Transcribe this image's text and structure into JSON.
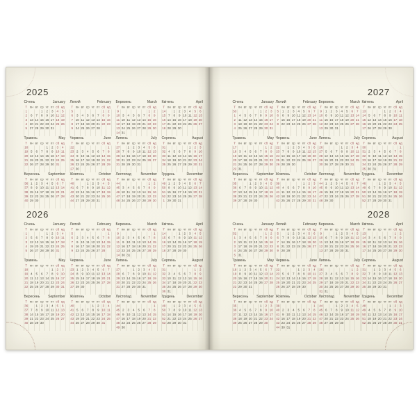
{
  "calendar": {
    "week_column_header": "Т",
    "weekday_labels": [
      "пн",
      "вт",
      "ср",
      "чт",
      "пт",
      "сб",
      "нд"
    ],
    "month_names_uk": [
      "Січень",
      "Лютий",
      "Березень",
      "Квітень",
      "Травень",
      "Червень",
      "Липень",
      "Серпень",
      "Вересень",
      "Жовтень",
      "Листопад",
      "Грудень"
    ],
    "month_names_en": [
      "January",
      "February",
      "March",
      "April",
      "May",
      "June",
      "July",
      "August",
      "September",
      "October",
      "November",
      "December"
    ],
    "colors": {
      "paper": "#f5f3e7",
      "ink": "#514e44",
      "weekend_red": "#9d5058"
    },
    "years": [
      {
        "year": "2025",
        "page": "left",
        "slot": "top",
        "months": [
          {
            "fd": 2,
            "days": 31,
            "weeks": [
              1,
              2,
              3,
              4,
              5
            ]
          },
          {
            "fd": 5,
            "days": 28,
            "weeks": [
              5,
              6,
              7,
              8,
              9
            ]
          },
          {
            "fd": 5,
            "days": 31,
            "weeks": [
              9,
              10,
              11,
              12,
              13,
              14
            ]
          },
          {
            "fd": 1,
            "days": 30,
            "weeks": [
              14,
              15,
              16,
              17,
              18
            ]
          },
          {
            "fd": 3,
            "days": 31,
            "weeks": [
              18,
              19,
              20,
              21,
              22
            ]
          },
          {
            "fd": 6,
            "days": 30,
            "weeks": [
              22,
              23,
              24,
              25,
              26,
              27
            ]
          },
          {
            "fd": 1,
            "days": 31,
            "weeks": [
              27,
              28,
              29,
              30,
              31
            ]
          },
          {
            "fd": 4,
            "days": 31,
            "weeks": [
              31,
              32,
              33,
              34,
              35
            ]
          },
          {
            "fd": 0,
            "days": 30,
            "weeks": [
              36,
              37,
              38,
              39,
              40
            ]
          },
          {
            "fd": 2,
            "days": 31,
            "weeks": [
              40,
              41,
              42,
              43,
              44
            ]
          },
          {
            "fd": 5,
            "days": 30,
            "weeks": [
              44,
              45,
              46,
              47,
              48
            ]
          },
          {
            "fd": 0,
            "days": 31,
            "weeks": [
              49,
              50,
              51,
              52,
              1
            ]
          }
        ]
      },
      {
        "year": "2026",
        "page": "left",
        "slot": "bottom",
        "months": [
          {
            "fd": 3,
            "days": 31,
            "weeks": [
              1,
              2,
              3,
              4,
              5
            ]
          },
          {
            "fd": 6,
            "days": 28,
            "weeks": [
              5,
              6,
              7,
              8,
              9
            ]
          },
          {
            "fd": 6,
            "days": 31,
            "weeks": [
              9,
              10,
              11,
              12,
              13,
              14
            ]
          },
          {
            "fd": 2,
            "days": 30,
            "weeks": [
              14,
              15,
              16,
              17,
              18
            ]
          },
          {
            "fd": 4,
            "days": 31,
            "weeks": [
              18,
              19,
              20,
              21,
              22
            ]
          },
          {
            "fd": 0,
            "days": 30,
            "weeks": [
              23,
              24,
              25,
              26,
              27
            ]
          },
          {
            "fd": 2,
            "days": 31,
            "weeks": [
              27,
              28,
              29,
              30,
              31
            ]
          },
          {
            "fd": 5,
            "days": 31,
            "weeks": [
              31,
              32,
              33,
              34,
              35,
              36
            ]
          },
          {
            "fd": 1,
            "days": 30,
            "weeks": [
              36,
              37,
              38,
              39,
              40
            ]
          },
          {
            "fd": 3,
            "days": 31,
            "weeks": [
              40,
              41,
              42,
              43,
              44
            ]
          },
          {
            "fd": 6,
            "days": 30,
            "weeks": [
              44,
              45,
              46,
              47,
              48,
              49
            ]
          },
          {
            "fd": 1,
            "days": 31,
            "weeks": [
              49,
              50,
              51,
              52,
              53
            ]
          }
        ]
      },
      {
        "year": "2027",
        "page": "right",
        "slot": "top",
        "months": [
          {
            "fd": 4,
            "days": 31,
            "weeks": [
              53,
              1,
              2,
              3,
              4
            ]
          },
          {
            "fd": 0,
            "days": 28,
            "weeks": [
              5,
              6,
              7,
              8
            ]
          },
          {
            "fd": 0,
            "days": 31,
            "weeks": [
              9,
              10,
              11,
              12,
              13
            ]
          },
          {
            "fd": 3,
            "days": 30,
            "weeks": [
              13,
              14,
              15,
              16,
              17
            ]
          },
          {
            "fd": 5,
            "days": 31,
            "weeks": [
              17,
              18,
              19,
              20,
              21,
              22
            ]
          },
          {
            "fd": 1,
            "days": 30,
            "weeks": [
              22,
              23,
              24,
              25,
              26
            ]
          },
          {
            "fd": 3,
            "days": 31,
            "weeks": [
              26,
              27,
              28,
              29,
              30
            ]
          },
          {
            "fd": 6,
            "days": 31,
            "weeks": [
              30,
              31,
              32,
              33,
              34,
              35
            ]
          },
          {
            "fd": 2,
            "days": 30,
            "weeks": [
              35,
              36,
              37,
              38,
              39
            ]
          },
          {
            "fd": 4,
            "days": 31,
            "weeks": [
              39,
              40,
              41,
              42,
              43
            ]
          },
          {
            "fd": 0,
            "days": 30,
            "weeks": [
              44,
              45,
              46,
              47,
              48
            ]
          },
          {
            "fd": 2,
            "days": 31,
            "weeks": [
              48,
              49,
              50,
              51,
              52
            ]
          }
        ]
      },
      {
        "year": "2028",
        "page": "right",
        "slot": "bottom",
        "months": [
          {
            "fd": 5,
            "days": 31,
            "weeks": [
              52,
              1,
              2,
              3,
              4,
              5
            ]
          },
          {
            "fd": 1,
            "days": 29,
            "weeks": [
              5,
              6,
              7,
              8,
              9
            ]
          },
          {
            "fd": 2,
            "days": 31,
            "weeks": [
              9,
              10,
              11,
              12,
              13
            ]
          },
          {
            "fd": 5,
            "days": 30,
            "weeks": [
              13,
              14,
              15,
              16,
              17
            ]
          },
          {
            "fd": 0,
            "days": 31,
            "weeks": [
              18,
              19,
              20,
              21,
              22
            ]
          },
          {
            "fd": 3,
            "days": 30,
            "weeks": [
              22,
              23,
              24,
              25,
              26
            ]
          },
          {
            "fd": 5,
            "days": 31,
            "weeks": [
              26,
              27,
              28,
              29,
              30,
              31
            ]
          },
          {
            "fd": 1,
            "days": 31,
            "weeks": [
              31,
              32,
              33,
              34,
              35
            ]
          },
          {
            "fd": 4,
            "days": 30,
            "weeks": [
              35,
              36,
              37,
              38,
              39
            ]
          },
          {
            "fd": 6,
            "days": 31,
            "weeks": [
              39,
              40,
              41,
              42,
              43,
              44
            ]
          },
          {
            "fd": 2,
            "days": 30,
            "weeks": [
              44,
              45,
              46,
              47,
              48
            ]
          },
          {
            "fd": 4,
            "days": 31,
            "weeks": [
              48,
              49,
              50,
              51,
              52
            ]
          }
        ]
      }
    ]
  }
}
